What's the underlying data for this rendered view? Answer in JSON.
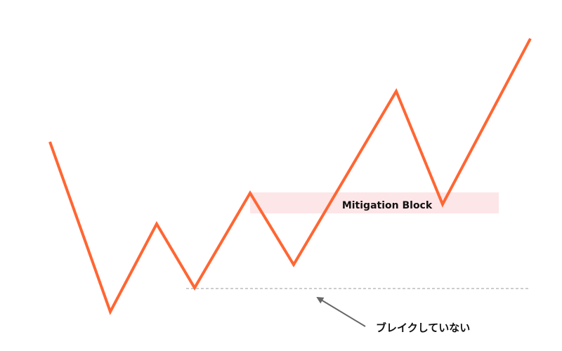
{
  "diagram": {
    "zone_label": "Mitigation Block",
    "annotation": "ブレイクしていない",
    "colors": {
      "price_line": "#ff6633",
      "zone_fill": "#fde6e8",
      "dashed_level": "#bbbbbb",
      "arrow": "#666666",
      "text": "#111111"
    }
  }
}
